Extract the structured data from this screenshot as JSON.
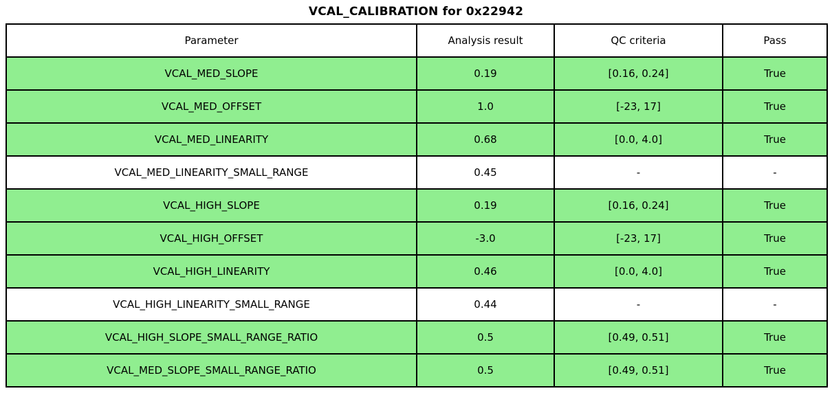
{
  "title": "VCAL_CALIBRATION for 0x22942",
  "colors": {
    "highlight_green": "#90EE90",
    "border": "#000000",
    "background": "#ffffff"
  },
  "chart_data": {
    "type": "table",
    "title": "VCAL_CALIBRATION for 0x22942",
    "columns": [
      "Parameter",
      "Analysis result",
      "QC criteria",
      "Pass"
    ],
    "rows": [
      {
        "cells": [
          "VCAL_MED_SLOPE",
          "0.19",
          "[0.16, 0.24]",
          "True"
        ],
        "highlighted": true
      },
      {
        "cells": [
          "VCAL_MED_OFFSET",
          "1.0",
          "[-23, 17]",
          "True"
        ],
        "highlighted": true
      },
      {
        "cells": [
          "VCAL_MED_LINEARITY",
          "0.68",
          "[0.0, 4.0]",
          "True"
        ],
        "highlighted": true
      },
      {
        "cells": [
          "VCAL_MED_LINEARITY_SMALL_RANGE",
          "0.45",
          "-",
          "-"
        ],
        "highlighted": false
      },
      {
        "cells": [
          "VCAL_HIGH_SLOPE",
          "0.19",
          "[0.16, 0.24]",
          "True"
        ],
        "highlighted": true
      },
      {
        "cells": [
          "VCAL_HIGH_OFFSET",
          "-3.0",
          "[-23, 17]",
          "True"
        ],
        "highlighted": true
      },
      {
        "cells": [
          "VCAL_HIGH_LINEARITY",
          "0.46",
          "[0.0, 4.0]",
          "True"
        ],
        "highlighted": true
      },
      {
        "cells": [
          "VCAL_HIGH_LINEARITY_SMALL_RANGE",
          "0.44",
          "-",
          "-"
        ],
        "highlighted": false
      },
      {
        "cells": [
          "VCAL_HIGH_SLOPE_SMALL_RANGE_RATIO",
          "0.5",
          "[0.49, 0.51]",
          "True"
        ],
        "highlighted": true
      },
      {
        "cells": [
          "VCAL_MED_SLOPE_SMALL_RANGE_RATIO",
          "0.5",
          "[0.49, 0.51]",
          "True"
        ],
        "highlighted": true
      }
    ],
    "layout": {
      "highlight_color": "#90EE90",
      "header_background": "#ffffff",
      "grid": true
    }
  }
}
